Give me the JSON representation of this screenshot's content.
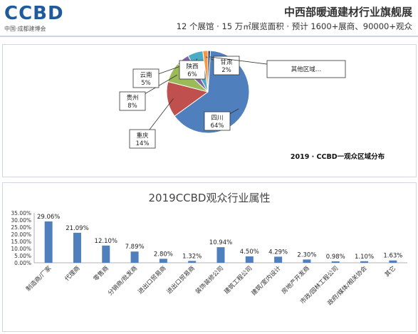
{
  "header": {
    "logo_text": "CCBD",
    "logo_subtitle": "中国·成都建博会",
    "title": "中西部暖通建材行业旗舰展",
    "subtitle": "12 个展馆 · 15 万㎡展览面积 · 预计 1600+展商、90000+观众"
  },
  "chart_data": [
    {
      "type": "pie",
      "title": "2019 · CCBD一观众区域分布",
      "slices": [
        {
          "label": "四川",
          "value": 64,
          "display": "64%",
          "color": "#4f7fbd"
        },
        {
          "label": "重庆",
          "value": 14,
          "display": "14%",
          "color": "#c0504d"
        },
        {
          "label": "贵州",
          "value": 8,
          "display": "8%",
          "color": "#9bbb59"
        },
        {
          "label": "云南",
          "value": 5,
          "display": "5%",
          "color": "#8064a2"
        },
        {
          "label": "陕西",
          "value": 6,
          "display": "6%",
          "color": "#4bacc6"
        },
        {
          "label": "甘肃",
          "value": 2,
          "display": "2%",
          "color": "#f79646"
        },
        {
          "label": "其他区域…",
          "value": 1,
          "display": "",
          "color": "#2c4d75"
        }
      ]
    },
    {
      "type": "bar",
      "title": "2019CCBD观众行业属性",
      "categories": [
        "制造商/厂家",
        "代理商",
        "零售商",
        "分销商/批发商",
        "进出口贸易商",
        "进出口贸易商",
        "装饰装修公司",
        "建筑工程公司",
        "建筑/室内设计",
        "房地产开发商",
        "市政/园林工程公司",
        "政府/媒体/相关协会",
        "其它"
      ],
      "values": [
        29.06,
        21.09,
        12.1,
        7.89,
        2.8,
        1.32,
        10.94,
        4.5,
        4.29,
        2.3,
        0.98,
        1.1,
        1.63
      ],
      "value_labels": [
        "29.06%",
        "21.09%",
        "12.10%",
        "7.89%",
        "2.80%",
        "1.32%",
        "10.94%",
        "4.50%",
        "4.29%",
        "2.30%",
        "0.98%",
        "1.10%",
        "1.63%"
      ],
      "y_ticks": [
        "0.00%",
        "5.00%",
        "10.00%",
        "15.00%",
        "20.00%",
        "25.00%",
        "30.00%",
        "35.00%"
      ],
      "ylim": [
        0,
        35
      ],
      "bar_color": "#4f7fbd",
      "grid": false
    }
  ]
}
